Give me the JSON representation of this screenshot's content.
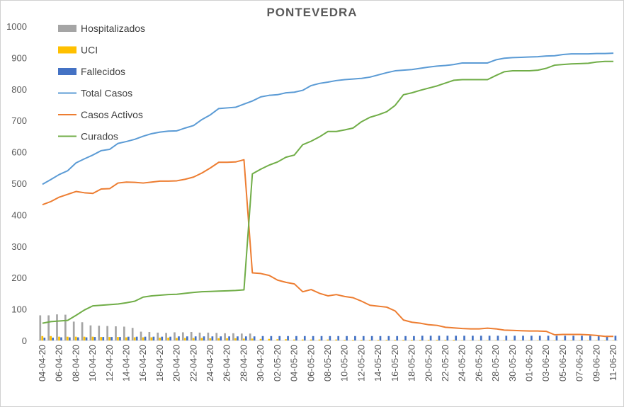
{
  "chart_data": {
    "type": "bar+line",
    "title": "PONTEVEDRA",
    "ylim": [
      0,
      1000
    ],
    "yticks": [
      0,
      100,
      200,
      300,
      400,
      500,
      600,
      700,
      800,
      900,
      1000
    ],
    "grid": false,
    "legend_position": "top-left",
    "categories": [
      "04-04-20",
      "05-04-20",
      "06-04-20",
      "07-04-20",
      "08-04-20",
      "09-04-20",
      "10-04-20",
      "11-04-20",
      "12-04-20",
      "13-04-20",
      "14-04-20",
      "15-04-20",
      "16-04-20",
      "17-04-20",
      "18-04-20",
      "19-04-20",
      "20-04-20",
      "21-04-20",
      "22-04-20",
      "23-04-20",
      "24-04-20",
      "25-04-20",
      "26-04-20",
      "27-04-20",
      "28-04-20",
      "29-04-20",
      "30-04-20",
      "01-05-20",
      "02-05-20",
      "03-05-20",
      "04-05-20",
      "05-05-20",
      "06-05-20",
      "07-05-20",
      "08-05-20",
      "09-05-20",
      "10-05-20",
      "11-05-20",
      "12-05-20",
      "13-05-20",
      "14-05-20",
      "15-05-20",
      "16-05-20",
      "17-05-20",
      "18-05-20",
      "19-05-20",
      "20-05-20",
      "21-05-20",
      "22-05-20",
      "23-05-20",
      "24-05-20",
      "25-05-20",
      "26-05-20",
      "27-05-20",
      "28-05-20",
      "29-05-20",
      "30-05-20",
      "31-05-20",
      "01-06-20",
      "02-06-20",
      "03-06-20",
      "04-06-20",
      "05-06-20",
      "06-06-20",
      "07-06-20",
      "08-06-20",
      "09-06-20",
      "10-06-20",
      "11-06-20"
    ],
    "xtick_labels": [
      "04-04-20",
      "06-04-20",
      "08-04-20",
      "10-04-20",
      "12-04-20",
      "14-04-20",
      "16-04-20",
      "18-04-20",
      "20-04-20",
      "22-04-20",
      "24-04-20",
      "26-04-20",
      "28-04-20",
      "30-04-20",
      "02-05-20",
      "04-05-20",
      "06-05-20",
      "08-05-20",
      "10-05-20",
      "12-05-20",
      "14-05-20",
      "16-05-20",
      "18-05-20",
      "20-05-20",
      "22-05-20",
      "24-05-20",
      "26-05-20",
      "28-05-20",
      "30-05-20",
      "01-06-20",
      "03-06-20",
      "05-06-20",
      "07-06-20",
      "09-06-20",
      "11-06-20"
    ],
    "series": [
      {
        "name": "Hospitalizados",
        "kind": "bar",
        "color": "#a5a5a5",
        "values": [
          80,
          80,
          83,
          82,
          60,
          58,
          48,
          47,
          46,
          45,
          44,
          40,
          28,
          27,
          25,
          24,
          26,
          26,
          27,
          25,
          25,
          24,
          23,
          23,
          22,
          22,
          0,
          0,
          0,
          0,
          0,
          0,
          0,
          0,
          0,
          0,
          0,
          0,
          0,
          0,
          0,
          0,
          0,
          0,
          0,
          0,
          0,
          0,
          0,
          0,
          0,
          0,
          0,
          0,
          0,
          0,
          0,
          0,
          0,
          0,
          0,
          0,
          0,
          0,
          0,
          0,
          0,
          0,
          0
        ]
      },
      {
        "name": "UCI",
        "kind": "bar",
        "color": "#ffc000",
        "values": [
          14,
          14,
          12,
          12,
          12,
          12,
          12,
          11,
          11,
          11,
          10,
          10,
          10,
          10,
          9,
          9,
          8,
          8,
          8,
          8,
          7,
          7,
          7,
          7,
          6,
          6,
          5,
          5,
          4,
          4,
          3,
          3,
          3,
          3,
          3,
          3,
          2,
          2,
          2,
          2,
          2,
          2,
          2,
          2,
          2,
          2,
          2,
          2,
          2,
          2,
          1,
          1,
          1,
          1,
          1,
          1,
          1,
          1,
          1,
          1,
          1,
          1,
          1,
          1,
          1,
          1,
          1,
          1,
          1
        ]
      },
      {
        "name": "Fallecidos",
        "kind": "bar",
        "color": "#4472c4",
        "values": [
          9,
          9,
          10,
          10,
          10,
          10,
          11,
          11,
          11,
          11,
          12,
          12,
          12,
          12,
          12,
          12,
          13,
          13,
          13,
          13,
          13,
          13,
          13,
          13,
          13,
          13,
          14,
          14,
          14,
          14,
          14,
          14,
          14,
          14,
          14,
          14,
          14,
          14,
          14,
          14,
          14,
          14,
          14,
          14,
          14,
          15,
          15,
          15,
          15,
          15,
          15,
          15,
          15,
          15,
          15,
          15,
          15,
          15,
          15,
          15,
          15,
          15,
          15,
          15,
          15,
          15,
          15,
          15,
          15
        ]
      },
      {
        "name": "Total Casos",
        "kind": "line",
        "color": "#5b9bd5",
        "values": [
          497,
          512,
          528,
          540,
          565,
          578,
          590,
          604,
          608,
          627,
          633,
          640,
          650,
          658,
          663,
          666,
          667,
          676,
          684,
          703,
          718,
          738,
          740,
          742,
          752,
          762,
          775,
          780,
          782,
          788,
          790,
          796,
          811,
          818,
          822,
          827,
          830,
          832,
          834,
          838,
          845,
          852,
          858,
          860,
          862,
          866,
          870,
          873,
          875,
          878,
          883,
          883,
          883,
          883,
          893,
          898,
          900,
          901,
          902,
          903,
          905,
          906,
          910,
          912,
          912,
          912,
          913,
          913,
          914
        ]
      },
      {
        "name": "Casos Activos",
        "kind": "line",
        "color": "#ed7d31",
        "values": [
          432,
          442,
          456,
          465,
          474,
          470,
          468,
          482,
          483,
          501,
          504,
          503,
          501,
          504,
          507,
          507,
          508,
          513,
          520,
          533,
          549,
          567,
          567,
          568,
          575,
          215,
          213,
          207,
          192,
          185,
          180,
          155,
          162,
          150,
          142,
          146,
          140,
          136,
          125,
          112,
          109,
          106,
          94,
          65,
          58,
          55,
          50,
          48,
          42,
          40,
          38,
          37,
          37,
          39,
          37,
          33,
          32,
          31,
          30,
          30,
          29,
          18,
          19,
          19,
          19,
          18,
          16,
          13,
          13
        ]
      },
      {
        "name": "Curados",
        "kind": "line",
        "color": "#70ad47",
        "values": [
          55,
          60,
          62,
          64,
          80,
          97,
          110,
          112,
          114,
          116,
          120,
          125,
          138,
          142,
          144,
          146,
          147,
          150,
          153,
          155,
          156,
          157,
          158,
          159,
          161,
          530,
          545,
          558,
          568,
          583,
          590,
          623,
          634,
          648,
          665,
          665,
          670,
          676,
          696,
          710,
          718,
          728,
          748,
          782,
          788,
          796,
          803,
          810,
          819,
          828,
          830,
          830,
          830,
          830,
          843,
          855,
          858,
          858,
          858,
          860,
          866,
          876,
          878,
          880,
          881,
          882,
          886,
          888,
          888
        ]
      }
    ]
  }
}
